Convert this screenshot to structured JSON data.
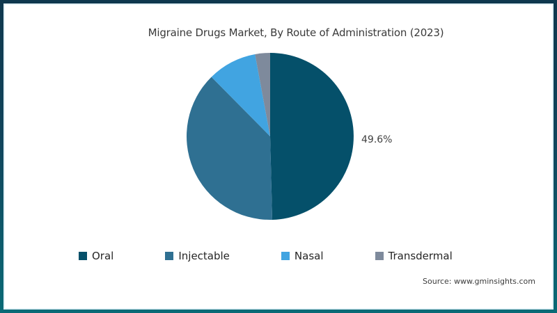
{
  "chart_data": {
    "type": "pie",
    "title": "Migraine Drugs Market, By Route of Administration (2023)",
    "start_angle_deg": 0,
    "direction": "clockwise",
    "legend_position": "bottom",
    "slices": [
      {
        "label": "Oral",
        "value": 49.6,
        "color": "#05506a",
        "data_label": "49.6%"
      },
      {
        "label": "Injectable",
        "value": 38.0,
        "color": "#2f7092",
        "data_label": ""
      },
      {
        "label": "Nasal",
        "value": 9.5,
        "color": "#41a4e1",
        "data_label": ""
      },
      {
        "label": "Transdermal",
        "value": 2.9,
        "color": "#7e8a9c",
        "data_label": ""
      }
    ]
  },
  "source": {
    "text": "Source: www.gminsights.com"
  },
  "colors": {
    "frame_top": "#0f384e",
    "frame_bottom": "#0a6a76",
    "inner_line": "#e4f2f9",
    "background": "#ffffff",
    "title_text": "#3a3a3a",
    "label_text": "#404040",
    "legend_text": "#262626",
    "source_text": "#3c3c3c"
  }
}
